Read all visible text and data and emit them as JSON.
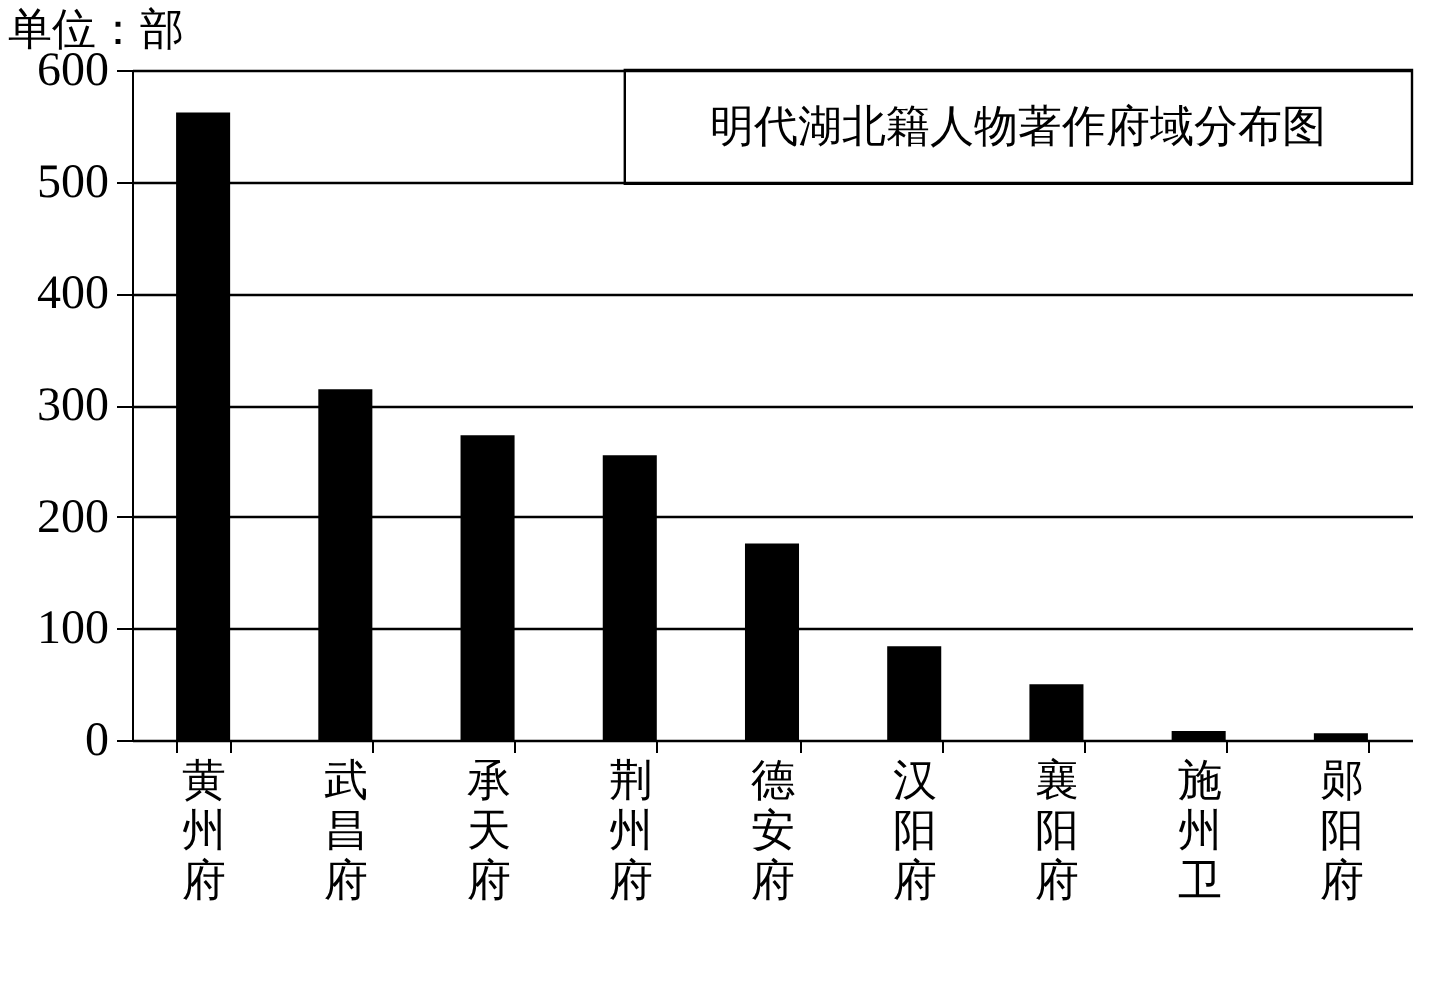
{
  "chart_data": {
    "type": "bar",
    "title": "明代湖北籍人物著作府域分布图",
    "annotations": [
      "单位：部"
    ],
    "categories": [
      "黄州府",
      "武昌府",
      "承天府",
      "荆州府",
      "德安府",
      "汉阳府",
      "襄阳府",
      "施州卫",
      "郧阳府"
    ],
    "values": [
      562,
      314,
      273,
      255,
      176,
      84,
      50,
      8,
      6
    ],
    "color": "#000000",
    "ylim": [
      0,
      600
    ],
    "yticks": [
      0,
      100,
      200,
      300,
      400,
      500,
      600
    ],
    "grid": "y"
  }
}
